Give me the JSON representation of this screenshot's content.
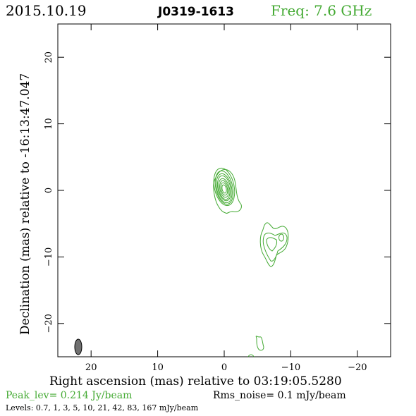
{
  "header": {
    "date": "2015.10.19",
    "source": "J0319-1613",
    "frequency": "Freq: 7.6 GHz"
  },
  "axes": {
    "xlabel": "Right ascension (mas) relative to 03:19:05.5280",
    "ylabel": "Declination (mas) relative to -16:13:47.047",
    "x_ticks": [
      "20",
      "10",
      "0",
      "−10",
      "−20"
    ],
    "y_ticks": [
      "20",
      "10",
      "0",
      "−10",
      "−20"
    ],
    "xlim": [
      25,
      -25
    ],
    "ylim": [
      -25,
      25
    ]
  },
  "footer": {
    "peak": "Peak_lev=  0.214 Jy/beam",
    "rms": "Rms_noise=   0.1 mJy/beam",
    "levels": "Levels: 0.7,   1,   3,   5,  10,  21,  42,  83, 167 mJy/beam"
  },
  "colors": {
    "contour": "#44aa33",
    "beam": "#707070"
  }
}
